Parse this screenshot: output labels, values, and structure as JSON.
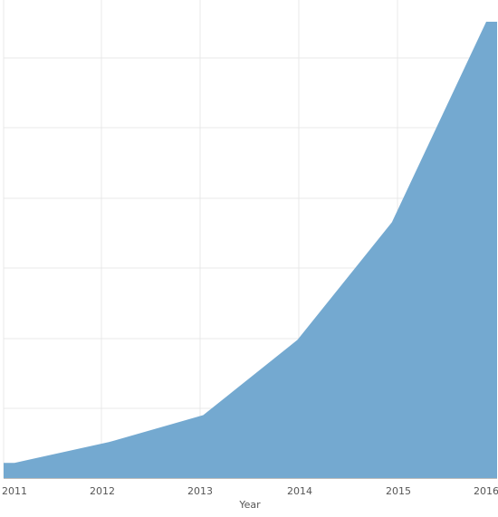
{
  "chart_data": {
    "type": "area",
    "x": [
      "2011",
      "2012",
      "2013",
      "2014",
      "2015",
      "2016"
    ],
    "series": [
      {
        "values": [
          0.22,
          0.52,
          0.91,
          2.0,
          3.7,
          6.6
        ]
      }
    ],
    "xlabel": "Year",
    "ylabel": "",
    "ylim": [
      0,
      6.6
    ],
    "grid": true,
    "colors": {
      "area": "#74a9d0",
      "grid": "#e9e9e9",
      "axis": "#bdbdbd",
      "tick_label": "#555555",
      "axis_title": "#555555"
    }
  }
}
